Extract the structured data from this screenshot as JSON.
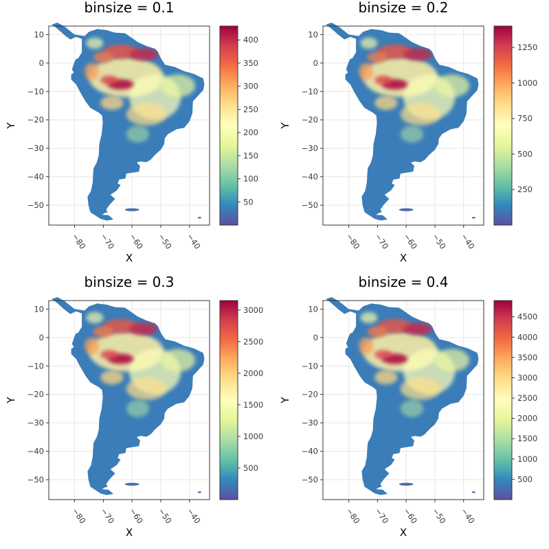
{
  "chart_data": [
    {
      "type": "heatmap",
      "title": "binsize = 0.1",
      "xlabel": "X",
      "ylabel": "Y",
      "xticks": [
        -80,
        -70,
        -60,
        -50,
        -40
      ],
      "yticks": [
        10,
        0,
        -10,
        -20,
        -30,
        -40,
        -50
      ],
      "xlim": [
        -89,
        -33
      ],
      "ylim": [
        -57,
        13
      ],
      "colormap": "Spectral (reversed)",
      "colorbar_range": [
        0,
        430
      ],
      "colorbar_ticks": [
        50,
        100,
        150,
        200,
        250,
        300,
        350,
        400
      ],
      "grid": true
    },
    {
      "type": "heatmap",
      "title": "binsize = 0.2",
      "xlabel": "X",
      "ylabel": "Y",
      "xticks": [
        -80,
        -70,
        -60,
        -50,
        -40
      ],
      "yticks": [
        10,
        0,
        -10,
        -20,
        -30,
        -40,
        -50
      ],
      "xlim": [
        -89,
        -33
      ],
      "ylim": [
        -57,
        13
      ],
      "colormap": "Spectral (reversed)",
      "colorbar_range": [
        0,
        1400
      ],
      "colorbar_ticks": [
        250,
        500,
        750,
        1000,
        1250
      ],
      "grid": true
    },
    {
      "type": "heatmap",
      "title": "binsize = 0.3",
      "xlabel": "X",
      "ylabel": "Y",
      "xticks": [
        -80,
        -70,
        -60,
        -50,
        -40
      ],
      "yticks": [
        10,
        0,
        -10,
        -20,
        -30,
        -40,
        -50
      ],
      "xlim": [
        -89,
        -33
      ],
      "ylim": [
        -57,
        13
      ],
      "colormap": "Spectral (reversed)",
      "colorbar_range": [
        0,
        3150
      ],
      "colorbar_ticks": [
        500,
        1000,
        1500,
        2000,
        2500,
        3000
      ],
      "grid": true
    },
    {
      "type": "heatmap",
      "title": "binsize = 0.4",
      "xlabel": "X",
      "ylabel": "Y",
      "xticks": [
        -80,
        -70,
        -60,
        -50,
        -40
      ],
      "yticks": [
        10,
        0,
        -10,
        -20,
        -30,
        -40,
        -50
      ],
      "xlim": [
        -89,
        -33
      ],
      "ylim": [
        -57,
        13
      ],
      "colormap": "Spectral (reversed)",
      "colorbar_range": [
        0,
        4900
      ],
      "colorbar_ticks": [
        500,
        1000,
        1500,
        2000,
        2500,
        3000,
        3500,
        4000,
        4500
      ],
      "grid": true
    }
  ],
  "colors": {
    "colormap_stops": [
      "#5e4fa2",
      "#3288bd",
      "#66c2a5",
      "#abdda4",
      "#e6f598",
      "#ffffbf",
      "#fee08b",
      "#fdae61",
      "#f46d43",
      "#d53e4f",
      "#9e0142"
    ]
  }
}
